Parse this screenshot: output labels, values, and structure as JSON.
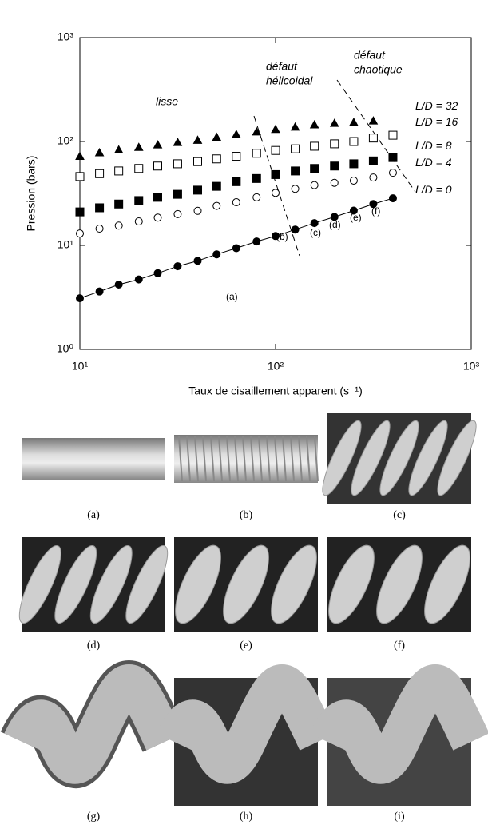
{
  "chart_data": {
    "type": "scatter",
    "x_label": "Taux de cisaillement apparent  (s⁻¹)",
    "y_label": "Pression (bars)",
    "x_scale": "log",
    "y_scale": "log",
    "xlim": [
      10,
      1000
    ],
    "ylim": [
      1,
      1000
    ],
    "xticks": [
      {
        "value": 10,
        "label": "10¹"
      },
      {
        "value": 100,
        "label": "10²"
      },
      {
        "value": 1000,
        "label": "10³"
      }
    ],
    "yticks": [
      {
        "value": 1,
        "label": "10⁰"
      },
      {
        "value": 10,
        "label": "10¹"
      },
      {
        "value": 100,
        "label": "10²"
      },
      {
        "value": 1000,
        "label": "10³"
      }
    ],
    "x": [
      10,
      12.6,
      15.8,
      20,
      25,
      31.6,
      40,
      50,
      63,
      80,
      100,
      126,
      158,
      200,
      251,
      316,
      398
    ],
    "series": [
      {
        "name": "L/D = 32",
        "marker": "triangle-filled",
        "color": "#000000",
        "values": [
          72,
          78,
          83,
          88,
          93,
          98,
          103,
          110,
          117,
          124,
          131,
          138,
          145,
          150,
          153,
          158,
          null
        ]
      },
      {
        "name": "L/D = 16",
        "marker": "square-open",
        "color": "#000000",
        "values": [
          46,
          49,
          52,
          55,
          58,
          61,
          64,
          68,
          72,
          77,
          82,
          85,
          90,
          95,
          100,
          108,
          115
        ]
      },
      {
        "name": "L/D = 8",
        "marker": "square-filled",
        "color": "#000000",
        "values": [
          21,
          23,
          25,
          27,
          29,
          31,
          34,
          37,
          41,
          44,
          48,
          52,
          55,
          58,
          61,
          65,
          70
        ]
      },
      {
        "name": "L/D = 4",
        "marker": "circle-open",
        "color": "#000000",
        "values": [
          13,
          14.5,
          15.5,
          17,
          18.5,
          20,
          21.5,
          24,
          26,
          29,
          32,
          35,
          38,
          40,
          42,
          45,
          50
        ]
      },
      {
        "name": "L/D = 0",
        "marker": "circle-filled",
        "line": true,
        "color": "#000000",
        "values": [
          3.1,
          3.6,
          4.2,
          4.7,
          5.4,
          6.3,
          7.1,
          8.2,
          9.4,
          10.9,
          12.3,
          14.2,
          16.4,
          18.8,
          21.6,
          25,
          28.4
        ]
      }
    ],
    "annotations": [
      "lisse",
      "défaut",
      "hélicoidal",
      "défaut",
      "chaotique",
      "(a)",
      "(b)",
      "(c)",
      "(d)",
      "(e)",
      "(f)"
    ]
  },
  "photos": {
    "labels": [
      "(a)",
      "(b)",
      "(c)",
      "(d)",
      "(e)",
      "(f)",
      "(g)",
      "(h)",
      "(i)"
    ]
  }
}
